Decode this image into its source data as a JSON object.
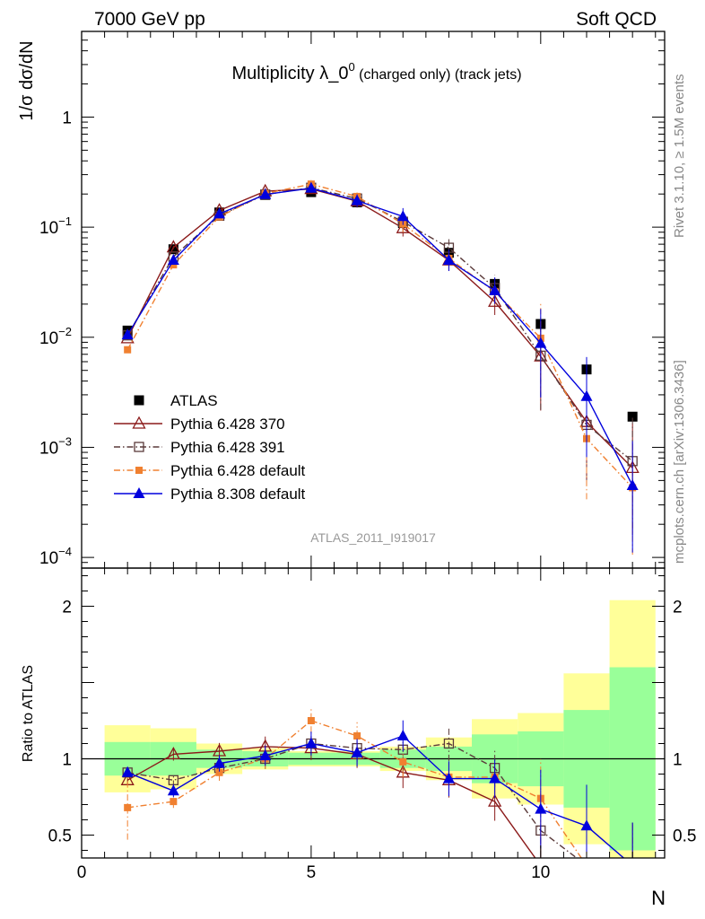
{
  "header": {
    "left": "7000 GeV pp",
    "right": "Soft QCD"
  },
  "side_labels": {
    "rivet": "Rivet 3.1.10, ≥ 1.5M events",
    "mcplots": "mcplots.cern.ch [arXiv:1306.3436]"
  },
  "colors": {
    "atlas": "#000000",
    "p370": "#8b1a1a",
    "p391": "#5a3a3a",
    "p6def": "#f08030",
    "p8def": "#0000dd",
    "band_inner": "#99ff99",
    "band_outer": "#ffff99"
  },
  "chart_data": [
    {
      "type": "scatter",
      "title": "Multiplicity λ_0",
      "title_sup": "0",
      "title_suffix": " (charged only) (track jets)",
      "ylabel": "1/σ dσ/dN",
      "yscale": "log",
      "ylim": [
        8e-05,
        6
      ],
      "xlim": [
        0,
        12.7
      ],
      "analysis": "ATLAS_2011_I919017",
      "y_ticks": [
        {
          "v": 0.0001,
          "base": "10",
          "exp": "−4"
        },
        {
          "v": 0.001,
          "base": "10",
          "exp": "−3"
        },
        {
          "v": 0.01,
          "base": "10",
          "exp": "−2"
        },
        {
          "v": 0.1,
          "base": "10",
          "exp": "−1"
        },
        {
          "v": 1,
          "base": "1",
          "exp": ""
        }
      ],
      "x": [
        1,
        2,
        3,
        4,
        5,
        6,
        7,
        8,
        9,
        10,
        11,
        12
      ],
      "series": [
        {
          "key": "atlas",
          "name": "ATLAS",
          "marker": "square",
          "line": "none",
          "values": [
            0.0115,
            0.063,
            0.136,
            0.196,
            0.208,
            0.168,
            0.109,
            0.0585,
            0.0305,
            0.0132,
            0.0051,
            0.0019
          ]
        },
        {
          "key": "p370",
          "name": "Pythia 6.428 370",
          "marker": "open-triangle",
          "line": "solid",
          "values": [
            0.0098,
            0.0655,
            0.142,
            0.212,
            0.222,
            0.172,
            0.098,
            0.05,
            0.021,
            0.0067,
            0.0017,
            0.00065
          ]
        },
        {
          "key": "p391",
          "name": "Pythia 6.428 391",
          "marker": "open-square",
          "line": "dashdot",
          "values": [
            0.0104,
            0.054,
            0.127,
            0.198,
            0.228,
            0.182,
            0.112,
            0.065,
            0.028,
            0.0068,
            0.0016,
            0.00075
          ]
        },
        {
          "key": "p6def",
          "name": "Pythia 6.428 default",
          "marker": "small-square",
          "line": "dashdot",
          "values": [
            0.0077,
            0.0455,
            0.124,
            0.202,
            0.246,
            0.19,
            0.107,
            0.052,
            0.026,
            0.0098,
            0.0012,
            0.00043
          ]
        },
        {
          "key": "p8def",
          "name": "Pythia 8.308 default",
          "marker": "filled-triangle",
          "line": "solid",
          "values": [
            0.0105,
            0.05,
            0.132,
            0.198,
            0.226,
            0.174,
            0.125,
            0.05,
            0.0265,
            0.0088,
            0.0029,
            0.00045
          ]
        }
      ]
    },
    {
      "type": "line",
      "ylabel": "Ratio to ATLAS",
      "xlabel": "N",
      "xlim": [
        0,
        12.7
      ],
      "ylim": [
        0.35,
        2.25
      ],
      "x_ticks": [
        0,
        5,
        10
      ],
      "y_ticks": [
        0.5,
        1,
        2
      ],
      "x": [
        1,
        2,
        3,
        4,
        5,
        6,
        7,
        8,
        9,
        10,
        11,
        12
      ],
      "bands": {
        "inner_half_width": [
          0.11,
          0.11,
          0.06,
          0.05,
          0.04,
          0.04,
          0.06,
          0.08,
          0.16,
          0.18,
          0.32,
          0.6
        ],
        "outer_half_width": [
          0.22,
          0.2,
          0.1,
          0.07,
          0.05,
          0.05,
          0.08,
          0.14,
          0.26,
          0.3,
          0.56,
          1.04
        ]
      },
      "series": [
        {
          "key": "p370",
          "name": "Pythia 6.428 370",
          "marker": "open-triangle",
          "line": "solid",
          "values": [
            0.86,
            1.03,
            1.05,
            1.08,
            1.07,
            1.03,
            0.91,
            0.86,
            0.72,
            0.3,
            0.3,
            0.3
          ]
        },
        {
          "key": "p391",
          "name": "Pythia 6.428 391",
          "marker": "open-square",
          "line": "dashdot",
          "values": [
            0.91,
            0.86,
            0.94,
            1.0,
            1.1,
            1.07,
            1.06,
            1.1,
            0.94,
            0.53,
            0.3,
            0.3
          ]
        },
        {
          "key": "p6def",
          "name": "Pythia 6.428 default",
          "marker": "small-square",
          "line": "dashdot",
          "values": [
            0.68,
            0.72,
            0.91,
            1.0,
            1.25,
            1.15,
            0.98,
            0.88,
            0.88,
            0.74,
            0.3,
            0.3
          ]
        },
        {
          "key": "p8def",
          "name": "Pythia 8.308 default",
          "marker": "filled-triangle",
          "line": "solid",
          "values": [
            0.91,
            0.79,
            0.97,
            1.02,
            1.1,
            1.04,
            1.15,
            0.87,
            0.87,
            0.67,
            0.56,
            0.3
          ]
        }
      ]
    }
  ]
}
